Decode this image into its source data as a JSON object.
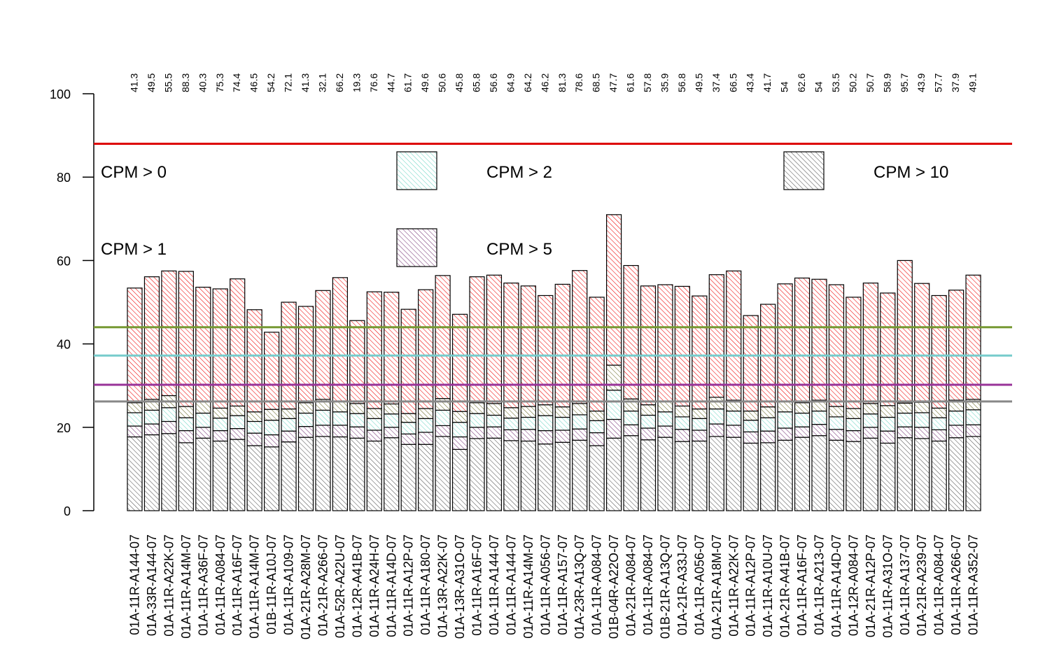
{
  "chart_data": {
    "type": "bar",
    "stacked": true,
    "ylim": [
      0,
      100
    ],
    "yticks": [
      "0",
      "20",
      "40",
      "60",
      "80",
      "100"
    ],
    "categories": [
      "01A-11R-A144-07",
      "01A-33R-A144-07",
      "01A-11R-A22K-07",
      "01A-11R-A14M-07",
      "01A-11R-A36F-07",
      "01A-11R-A084-07",
      "01A-11R-A16F-07",
      "01A-11R-A14M-07",
      "01B-11R-A10J-07",
      "01A-11R-A109-07",
      "01A-21R-A28M-07",
      "01A-21R-A266-07",
      "01A-52R-A22U-07",
      "01A-12R-A41B-07",
      "01A-11R-A24H-07",
      "01A-11R-A14D-07",
      "01A-11R-A12P-07",
      "01A-11R-A180-07",
      "01A-13R-A22K-07",
      "01A-13R-A31O-07",
      "01A-11R-A16F-07",
      "01A-11R-A144-07",
      "01A-11R-A144-07",
      "01A-11R-A14M-07",
      "01A-11R-A056-07",
      "01A-11R-A157-07",
      "01A-23R-A13Q-07",
      "01A-11R-A084-07",
      "01B-04R-A22O-07",
      "01A-21R-A084-07",
      "01A-11R-A084-07",
      "01B-21R-A13Q-07",
      "01A-21R-A33J-07",
      "01A-11R-A056-07",
      "01A-21R-A18M-07",
      "01A-11R-A22K-07",
      "01A-11R-A12P-07",
      "01A-11R-A10U-07",
      "01A-21R-A41B-07",
      "01A-11R-A16F-07",
      "01A-11R-A213-07",
      "01A-11R-A14D-07",
      "01A-12R-A084-07",
      "01A-21R-A12P-07",
      "01A-11R-A31O-07",
      "01A-11R-A137-07",
      "01A-21R-A239-07",
      "01A-11R-A084-07",
      "01A-11R-A266-07",
      "01A-11R-A352-07"
    ],
    "top_labels": [
      "41.3",
      "49.5",
      "55.5",
      "88.3",
      "40.3",
      "75.3",
      "74.4",
      "46.5",
      "54.2",
      "72.1",
      "41.3",
      "32.1",
      "66.2",
      "19.3",
      "76.6",
      "44.7",
      "61.7",
      "49.6",
      "50.6",
      "45.8",
      "65.8",
      "56.6",
      "64.9",
      "64.2",
      "46.2",
      "81.3",
      "78.6",
      "68.5",
      "47.7",
      "61.6",
      "57.8",
      "35.9",
      "56.8",
      "49.5",
      "37.4",
      "66.5",
      "43.4",
      "41.7",
      "54",
      "62.6",
      "54",
      "53.5",
      "50.2",
      "50.7",
      "58.9",
      "95.7",
      "43.9",
      "57.7",
      "37.9",
      "49.1"
    ],
    "series": [
      {
        "name": "CPM > 10",
        "color": "#555555",
        "values": [
          17.7,
          18.2,
          18.5,
          16.3,
          17.4,
          16.7,
          17.1,
          15.6,
          15.3,
          16.5,
          17.6,
          17.8,
          17.7,
          17.4,
          16.7,
          17.5,
          15.9,
          15.9,
          17.8,
          14.7,
          17.3,
          17.4,
          16.8,
          16.7,
          16.0,
          16.4,
          16.9,
          15.6,
          17.4,
          18.0,
          17.0,
          17.6,
          16.6,
          16.7,
          17.8,
          17.6,
          16.2,
          16.3,
          16.9,
          17.6,
          18.0,
          16.9,
          16.6,
          17.4,
          16.2,
          17.5,
          17.3,
          16.7,
          17.5,
          17.8
        ]
      },
      {
        "name": "CPM > 5",
        "color": "#7a3b7a",
        "values": [
          2.6,
          2.6,
          2.9,
          2.9,
          2.6,
          2.5,
          2.6,
          3.0,
          2.9,
          2.6,
          2.6,
          2.7,
          2.8,
          2.7,
          2.6,
          2.5,
          2.5,
          2.9,
          2.6,
          3.0,
          2.7,
          2.7,
          2.6,
          2.8,
          3.2,
          2.9,
          2.7,
          3.1,
          4.5,
          2.6,
          2.8,
          2.7,
          2.9,
          2.6,
          3.0,
          2.9,
          2.7,
          2.8,
          2.9,
          2.5,
          2.7,
          2.6,
          2.6,
          2.6,
          2.9,
          2.6,
          2.7,
          2.7,
          3.0,
          2.8
        ]
      },
      {
        "name": "CPM > 2",
        "color": "#6fd6c4",
        "values": [
          3.2,
          3.3,
          3.3,
          3.1,
          3.4,
          3.0,
          3.1,
          2.8,
          3.5,
          3.0,
          3.2,
          3.6,
          3.2,
          3.2,
          2.8,
          3.2,
          2.8,
          3.3,
          3.7,
          3.5,
          3.3,
          2.8,
          2.8,
          2.9,
          3.6,
          3.1,
          3.4,
          2.9,
          7.0,
          3.3,
          3.1,
          3.4,
          3.0,
          2.8,
          3.6,
          3.4,
          2.8,
          3.2,
          3.9,
          3.3,
          3.2,
          3.0,
          2.9,
          3.2,
          3.3,
          3.3,
          3.5,
          2.9,
          3.4,
          3.6
        ]
      },
      {
        "name": "CPM > 1",
        "color": "#6b6b2a",
        "values": [
          2.4,
          2.6,
          2.9,
          2.7,
          2.9,
          2.4,
          2.3,
          2.3,
          2.6,
          2.3,
          2.5,
          2.6,
          2.6,
          2.4,
          2.4,
          2.4,
          2.1,
          2.4,
          2.8,
          2.6,
          2.6,
          2.8,
          2.5,
          2.6,
          2.6,
          2.5,
          2.7,
          2.3,
          6.0,
          2.9,
          2.5,
          2.6,
          2.6,
          2.3,
          2.8,
          2.6,
          2.2,
          2.6,
          2.6,
          2.5,
          2.6,
          2.5,
          2.4,
          2.5,
          2.8,
          2.4,
          2.5,
          2.3,
          2.6,
          2.5
        ]
      },
      {
        "name": "CPM > 0",
        "color": "#ee0000",
        "values": [
          27.5,
          29.4,
          29.9,
          32.4,
          27.3,
          28.6,
          30.5,
          24.5,
          18.5,
          25.6,
          23.1,
          26.1,
          29.6,
          19.9,
          28.0,
          26.8,
          25.0,
          28.5,
          29.5,
          23.3,
          30.2,
          30.8,
          29.9,
          28.9,
          26.2,
          29.4,
          31.9,
          27.3,
          36.1,
          32.0,
          28.5,
          27.9,
          28.7,
          27.1,
          29.4,
          31.0,
          22.9,
          24.6,
          28.1,
          29.9,
          29.0,
          29.2,
          26.7,
          28.9,
          27.0,
          34.2,
          28.5,
          27.0,
          26.4,
          29.8
        ]
      }
    ],
    "hlines": [
      {
        "y": 88,
        "color": "#dd0000"
      },
      {
        "y": 44,
        "color": "#779933"
      },
      {
        "y": 37.2,
        "color": "#77cccc"
      },
      {
        "y": 30.2,
        "color": "#993399"
      },
      {
        "y": 26.2,
        "color": "#888888"
      }
    ],
    "legend": [
      {
        "label": "CPM > 0",
        "color": "#ee0000",
        "swatch": false
      },
      {
        "label": "CPM > 2",
        "color": "#6fd6c4",
        "swatch": true
      },
      {
        "label": "CPM > 10",
        "color": "#555555",
        "swatch": true
      },
      {
        "label": "CPM > 1",
        "color": "#6b6b2a",
        "swatch": false
      },
      {
        "label": "CPM > 5",
        "color": "#7a3b7a",
        "swatch": true
      }
    ],
    "grid": false
  }
}
